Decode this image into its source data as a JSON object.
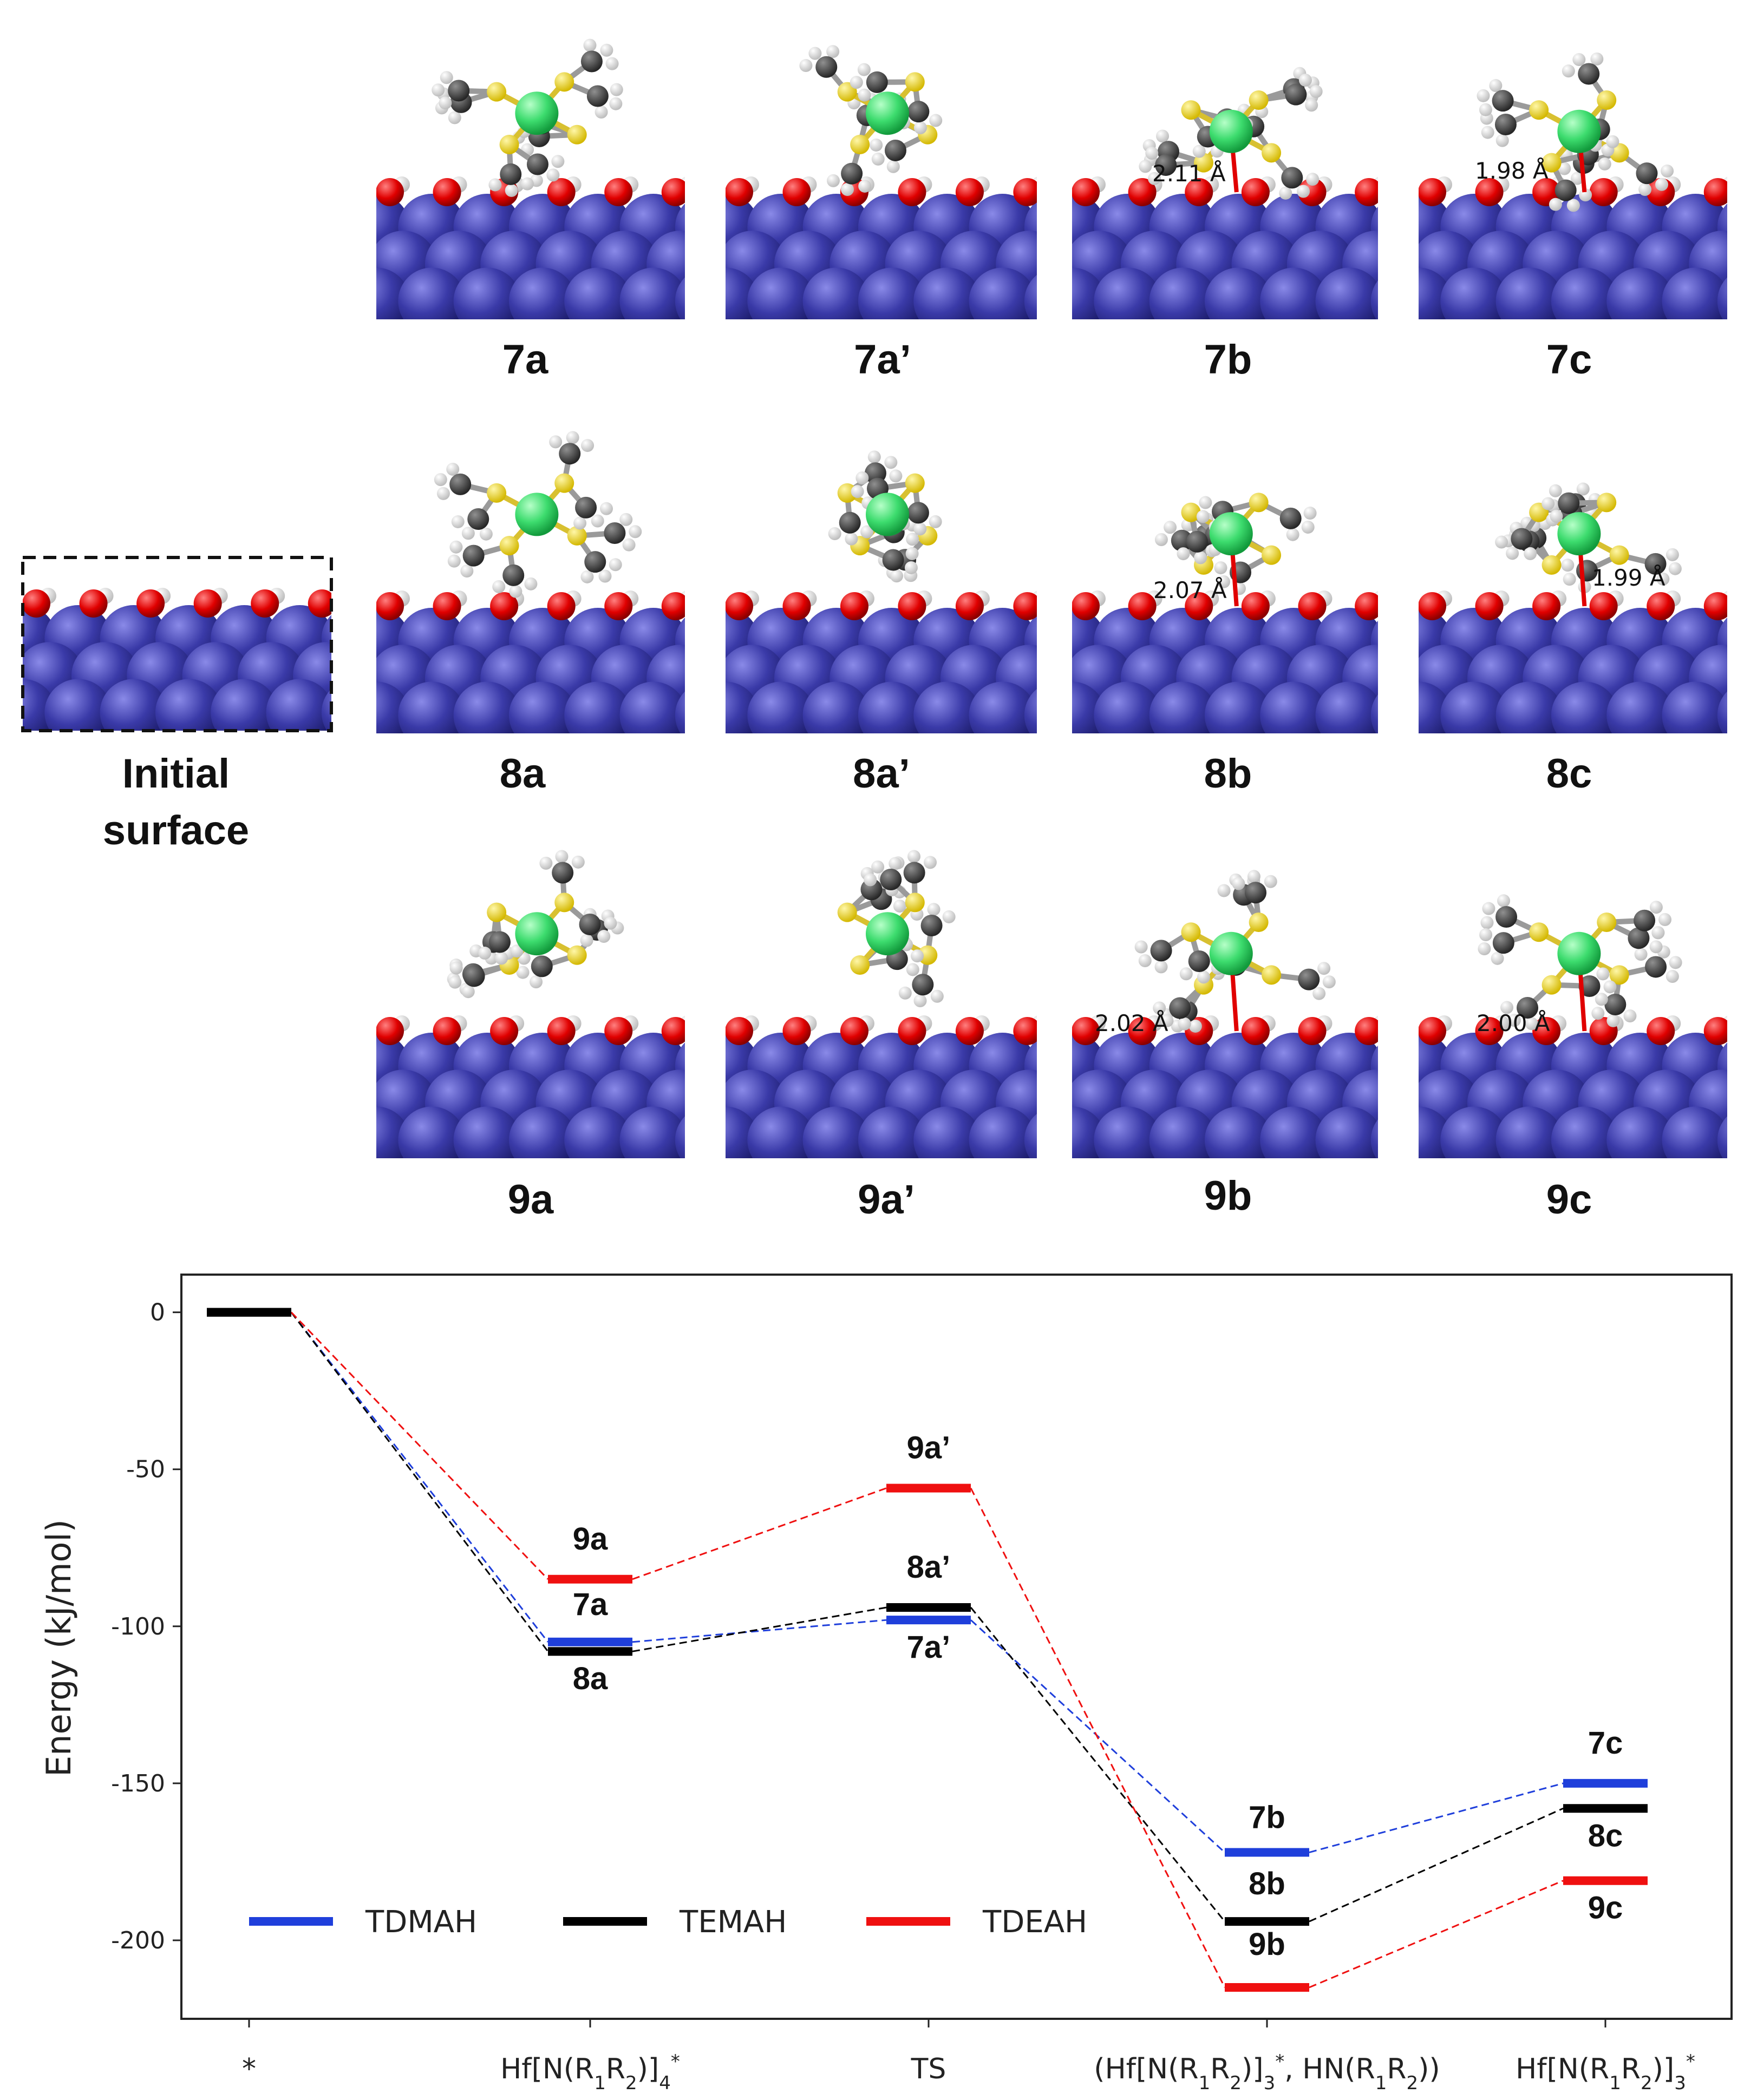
{
  "panels": {
    "initial_label_line1": "Initial",
    "initial_label_line2": "surface",
    "row1": [
      "7a",
      "7a’",
      "7b",
      "7c"
    ],
    "row2": [
      "8a",
      "8a’",
      "8b",
      "8c"
    ],
    "row3": [
      "9a",
      "9a’",
      "9b",
      "9c"
    ],
    "distances": {
      "7b": "2.11 Å",
      "7c": "1.98 Å",
      "8b": "2.07 Å",
      "8c": "1.99 Å",
      "9b": "2.02 Å",
      "9c": "2.00 Å"
    },
    "colors": {
      "substrate": "#3a3aa8",
      "oxygen": "#e00000",
      "hydrogen": "#f2f2f2",
      "carbon": "#444444",
      "nitrogen": "#f0dc3a",
      "hafnium": "#3ddc6e"
    }
  },
  "chart_data": {
    "type": "line",
    "title": "",
    "ylabel": "Energy (kJ/mol)",
    "xlabel": "",
    "ylim": [
      -225,
      12
    ],
    "yticks": [
      0,
      -50,
      -100,
      -150,
      -200
    ],
    "categories": [
      "*",
      "Hf[N(R1R2)]4*",
      "TS",
      "(Hf[N(R1R2)]3*, HN(R1R2))",
      "Hf[N(R1R2)]3*"
    ],
    "series": [
      {
        "name": "TDMAH",
        "color": "#1f3fdb",
        "values": [
          0,
          -105,
          -98,
          -172,
          -150
        ],
        "labels": [
          "",
          "7a",
          "7a’",
          "7b",
          "7c"
        ]
      },
      {
        "name": "TEMAH",
        "color": "#000000",
        "values": [
          0,
          -108,
          -94,
          -194,
          -158
        ],
        "labels": [
          "",
          "8a",
          "8a’",
          "8b",
          "8c"
        ]
      },
      {
        "name": "TDEAH",
        "color": "#ef1010",
        "values": [
          0,
          -85,
          -56,
          -215,
          -181
        ],
        "labels": [
          "",
          "9a",
          "9a’",
          "9b",
          "9c"
        ]
      }
    ],
    "legend": {
      "placement": "bottom-left",
      "entries": [
        "TDMAH",
        "TEMAH",
        "TDEAH"
      ]
    }
  }
}
